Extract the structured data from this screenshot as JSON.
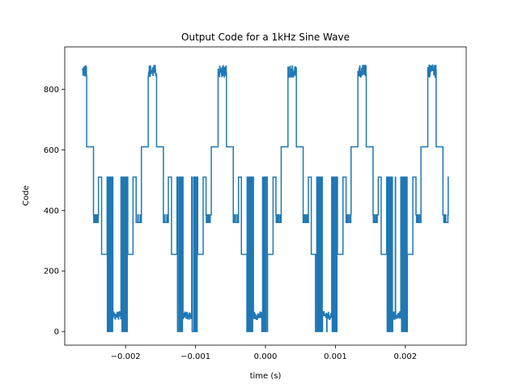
{
  "chart_data": {
    "type": "line",
    "title": "Output Code for a 1kHz Sine Wave",
    "xlabel": "time (s)",
    "ylabel": "Code",
    "xlim": [
      -0.00287,
      0.00287
    ],
    "ylim": [
      -45,
      940
    ],
    "grid": false,
    "line_color": "#1f77b4",
    "xticks": [
      {
        "value": -0.002,
        "label": "−0.002"
      },
      {
        "value": -0.001,
        "label": "−0.001"
      },
      {
        "value": 0.0,
        "label": "0.000"
      },
      {
        "value": 0.001,
        "label": "0.001"
      },
      {
        "value": 0.002,
        "label": "0.002"
      }
    ],
    "yticks": [
      {
        "value": 0,
        "label": "0"
      },
      {
        "value": 200,
        "label": "200"
      },
      {
        "value": 400,
        "label": "400"
      },
      {
        "value": 600,
        "label": "600"
      },
      {
        "value": 800,
        "label": "800"
      }
    ],
    "series": [
      {
        "period": 0.001,
        "x_start": -0.00262,
        "x_end": 0.00262,
        "codes": [
          0,
          31,
          63,
          255,
          383,
          511,
          767,
          895
        ],
        "x": [
          -0.00262,
          -0.00252,
          -0.00248,
          -0.00244,
          -0.00238,
          -0.00234,
          -0.00231,
          -0.00228,
          -0.00225,
          -0.00221,
          -0.00216,
          -0.00212,
          -0.00208,
          -0.00203,
          -0.00198,
          -0.00194,
          -0.00188,
          -0.00182,
          -0.00176,
          -0.00172,
          -0.00168,
          -0.00162,
          -0.00158,
          -0.00152,
          -0.00148,
          -0.00143,
          -0.00138,
          -0.00134,
          -0.0013,
          -0.00125,
          -0.0012,
          -0.00116,
          -0.0011,
          -0.00106,
          -0.001,
          -0.00094,
          -0.00088,
          -0.00083,
          -0.00078,
          -0.00072,
          -0.00068,
          -0.00062,
          -0.00058,
          -0.00053,
          -0.00048,
          -0.00044,
          -0.0004,
          -0.00035,
          -0.0003,
          -0.00026,
          -0.0002,
          -0.00016,
          -0.0001,
          -5e-05,
          0.0,
          5e-05,
          0.0001,
          0.00016,
          0.00022,
          0.00028,
          0.00034,
          0.0004,
          0.00045,
          0.0005,
          0.00055,
          0.0006,
          0.00066,
          0.00072,
          0.00078,
          0.00084,
          0.00088,
          0.00092,
          0.00098,
          0.00104,
          0.0011,
          0.00116,
          0.00122,
          0.00128,
          0.00134,
          0.0014,
          0.00146,
          0.00152,
          0.00158,
          0.00164,
          0.0017,
          0.00176,
          0.00182,
          0.00188,
          0.00194,
          0.002,
          0.00206,
          0.00212,
          0.00218,
          0.00224,
          0.0023,
          0.00236,
          0.00242,
          0.00248,
          0.00254,
          0.00262
        ],
        "y": [
          840,
          845,
          610,
          380,
          360,
          510,
          0,
          60,
          40,
          255,
          510,
          510,
          255,
          0,
          60,
          40,
          255,
          610,
          880,
          860,
          610,
          380,
          360,
          510,
          0,
          60,
          40,
          255,
          510,
          255,
          0,
          60,
          40,
          255,
          610,
          880,
          860,
          610,
          380,
          360,
          510,
          0,
          60,
          40,
          255,
          510,
          255,
          0,
          60,
          40,
          255,
          610,
          880,
          860,
          845,
          610,
          380,
          360,
          510,
          0,
          60,
          40,
          255,
          510,
          255,
          0,
          60,
          40,
          255,
          610,
          880,
          860,
          610,
          380,
          360,
          510,
          0,
          60,
          40,
          255,
          510,
          255,
          0,
          60,
          40,
          255,
          610,
          880,
          860,
          610,
          380,
          360,
          510,
          0,
          60,
          40,
          255,
          610,
          880,
          360
        ]
      }
    ]
  }
}
